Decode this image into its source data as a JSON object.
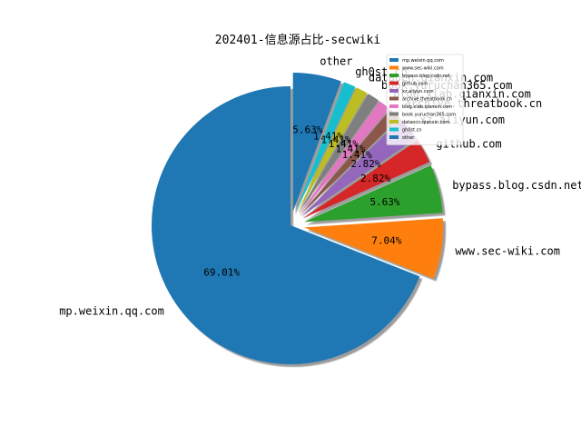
{
  "chart_data": {
    "type": "pie",
    "title": "202401-信息源占比-secwiki",
    "categories": [
      "mp.weixin.qq.com",
      "www.sec-wiki.com",
      "bypass.blog.csdn.net",
      "github.com",
      "xz.aliyun.com",
      "archive.threatbook.cn",
      "blog.xlab.qianxin.com",
      "book.yuruchan365.com",
      "dataocn.qianxin.com",
      "gh0st.cn",
      "other"
    ],
    "values": [
      69.01,
      7.04,
      5.63,
      2.82,
      2.82,
      1.41,
      1.41,
      1.41,
      1.41,
      1.41,
      5.63
    ],
    "percent_labels": [
      "69.01%",
      "7.04%",
      "5.63%",
      "2.82%",
      "2.82%",
      "1.41%",
      "1.41%",
      "1.41%",
      "1.41%",
      "1.41%",
      "5.63%"
    ],
    "colors": [
      "#1f77b4",
      "#ff7f0e",
      "#2ca02c",
      "#d62728",
      "#9467bd",
      "#8c564b",
      "#e377c2",
      "#7f7f7f",
      "#bcbd22",
      "#17becf",
      "#1f77b4"
    ],
    "explode": [
      0,
      0.1,
      0.1,
      0.1,
      0.1,
      0.1,
      0.1,
      0.1,
      0.1,
      0.1,
      0.1
    ],
    "shadow": true,
    "legend_placement": "top-right"
  }
}
